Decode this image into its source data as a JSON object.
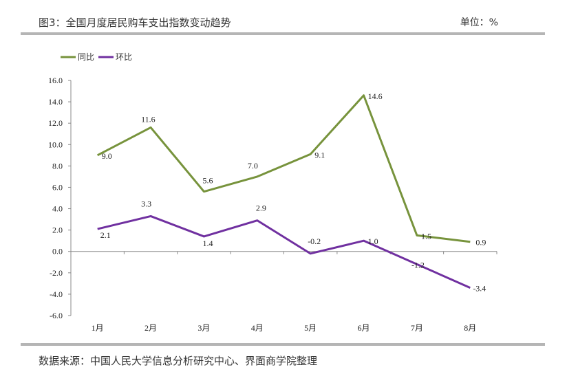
{
  "header": {
    "title": "图3：全国月度居民购车支出指数变动趋势",
    "unit": "单位：%"
  },
  "footer": {
    "source": "数据来源：中国人民大学信息分析研究中心、界面商学院整理"
  },
  "chart_data": {
    "type": "line",
    "title": "全国月度居民购车支出指数变动趋势",
    "categories": [
      "1月",
      "2月",
      "3月",
      "4月",
      "5月",
      "6月",
      "7月",
      "8月"
    ],
    "series": [
      {
        "name": "同比",
        "color": "#77933c",
        "values": [
          9.0,
          11.6,
          5.6,
          7.0,
          9.1,
          14.6,
          1.5,
          0.9
        ]
      },
      {
        "name": "环比",
        "color": "#7030a0",
        "values": [
          2.1,
          3.3,
          1.4,
          2.9,
          -0.2,
          1.0,
          -1.2,
          -3.4
        ]
      }
    ],
    "ylim": [
      -6,
      16
    ],
    "yticks": [
      "16.0",
      "14.0",
      "12.0",
      "10.0",
      "8.0",
      "6.0",
      "4.0",
      "2.0",
      "0.0",
      "-2.0",
      "-4.0",
      "-6.0"
    ],
    "ytick_values": [
      16,
      14,
      12,
      10,
      8,
      6,
      4,
      2,
      0,
      -2,
      -4,
      -6
    ],
    "legend": "top-left",
    "grid": false
  }
}
